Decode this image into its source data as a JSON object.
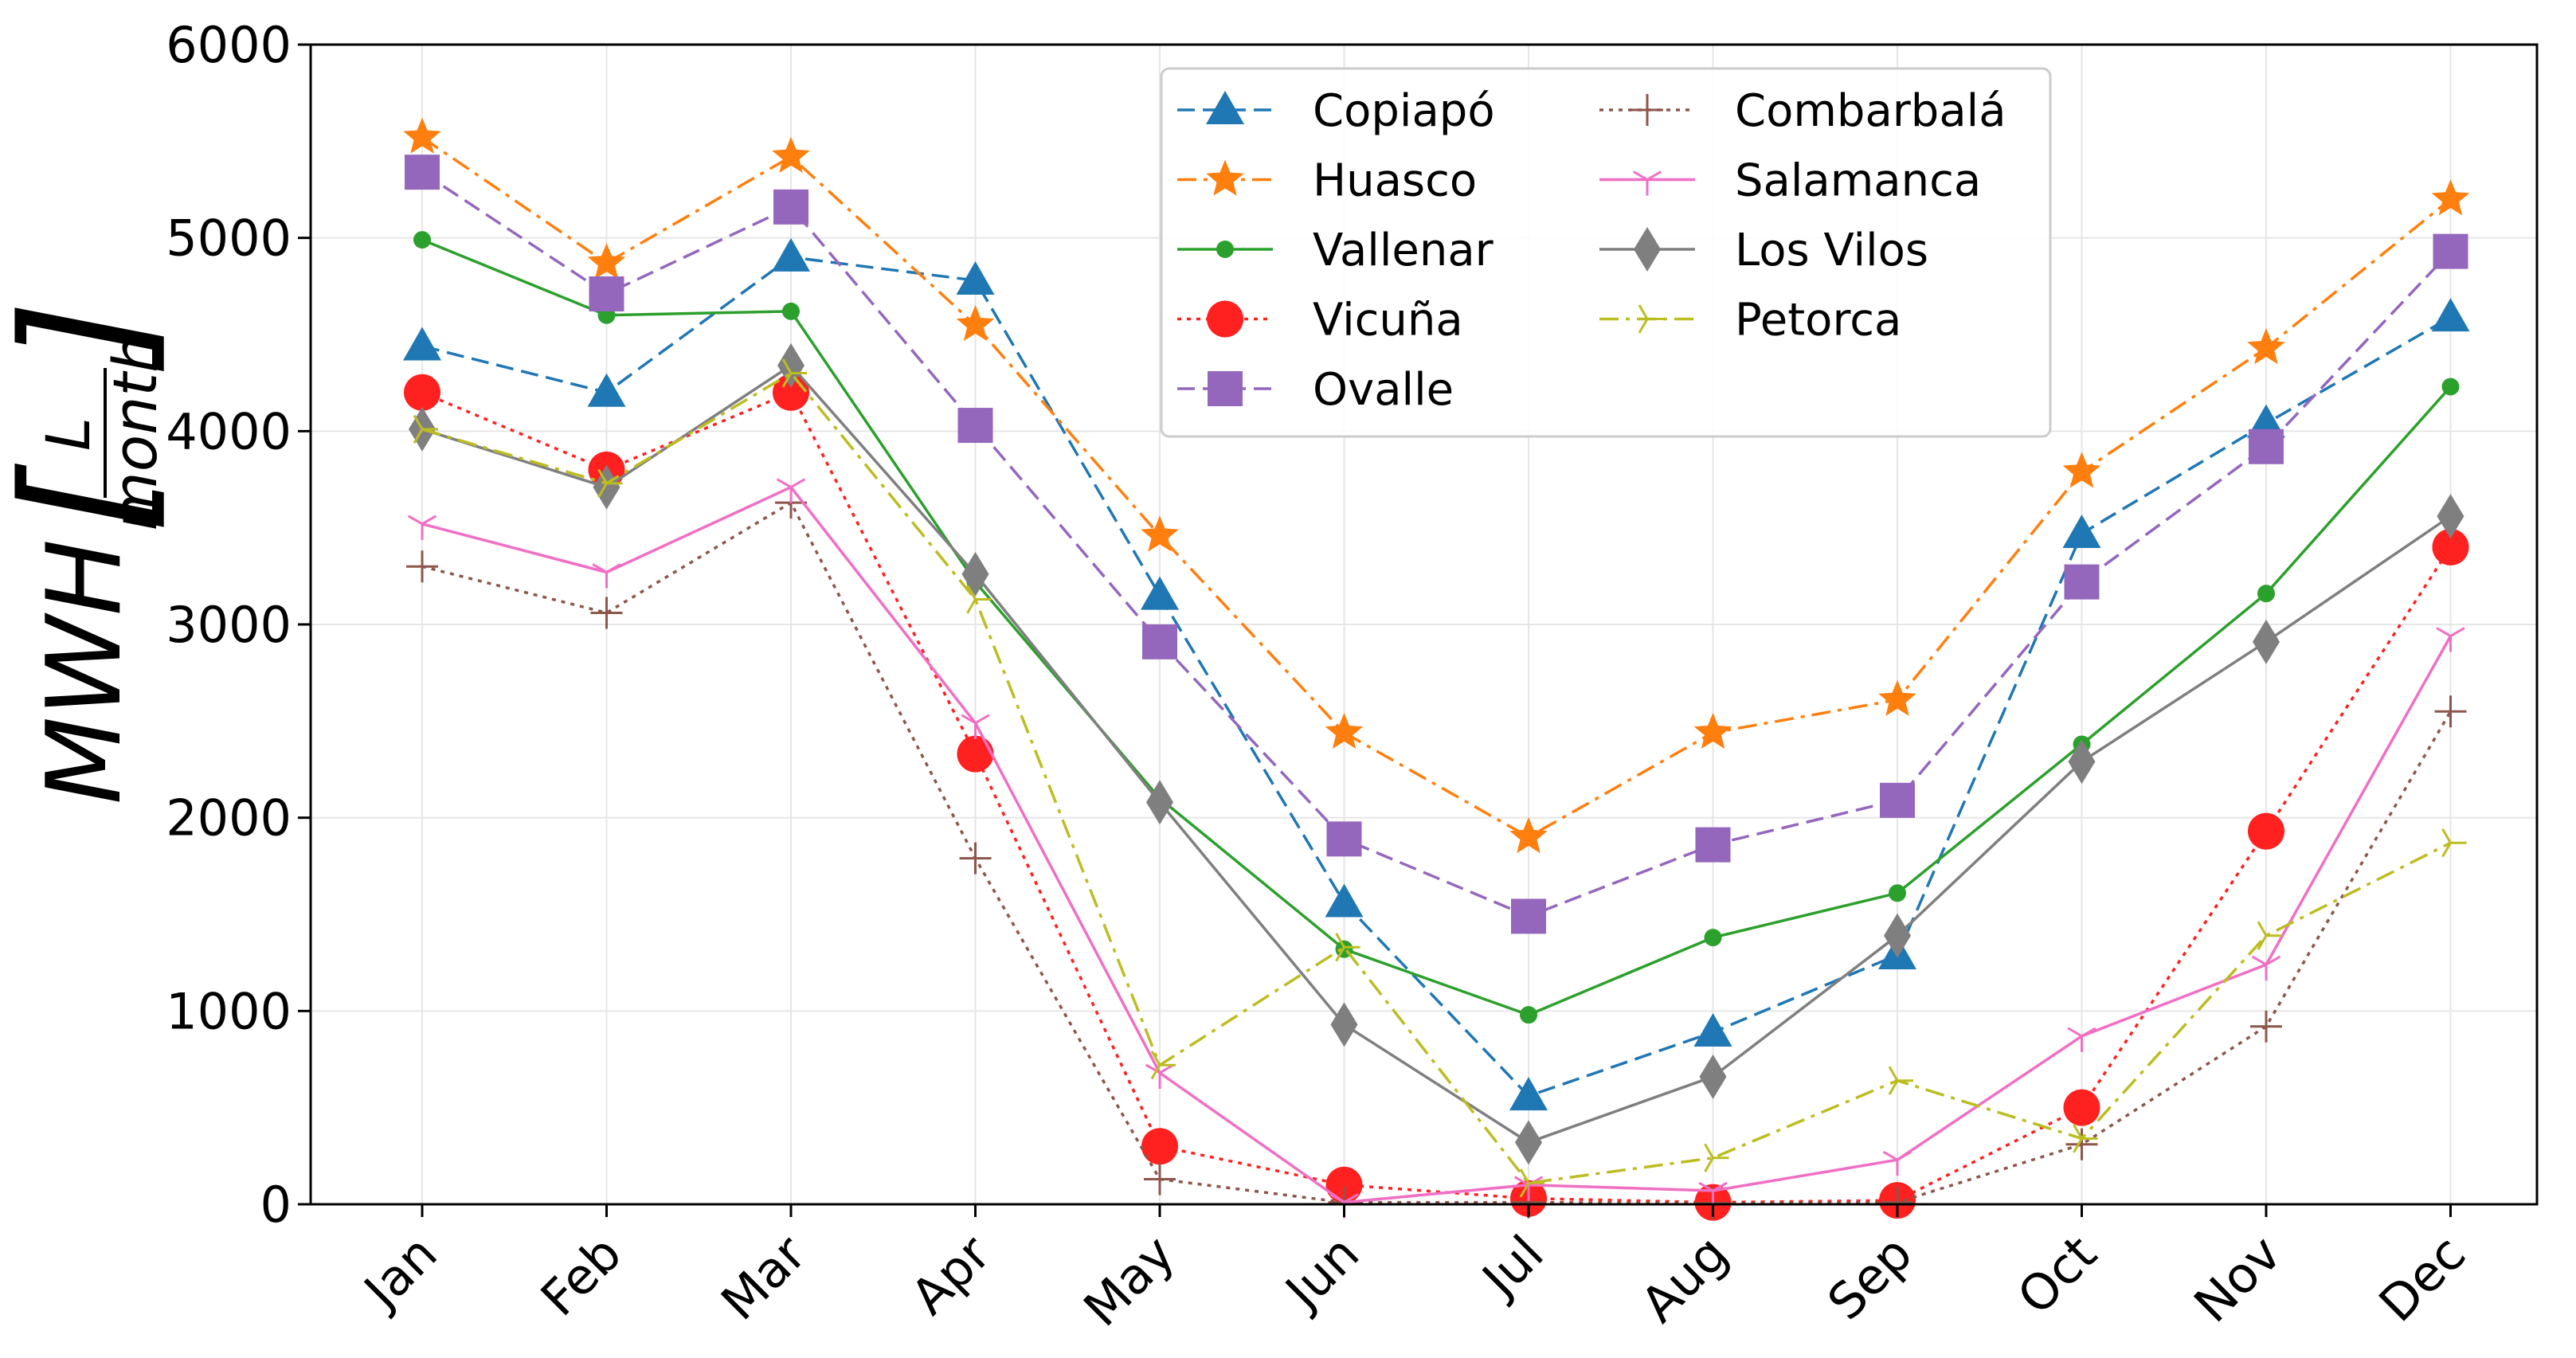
{
  "chart_data": {
    "type": "line",
    "ylabel": {
      "main": "MWH",
      "frac_num": "L",
      "frac_den": "month"
    },
    "xlabel": "",
    "categories": [
      "Jan",
      "Feb",
      "Mar",
      "Apr",
      "May",
      "Jun",
      "Jul",
      "Aug",
      "Sep",
      "Oct",
      "Nov",
      "Dec"
    ],
    "ylim": [
      0,
      6000
    ],
    "yticks": [
      0,
      1000,
      2000,
      3000,
      4000,
      5000,
      6000
    ],
    "grid": true,
    "legend": {
      "placement": "upper-center",
      "columns": 2
    },
    "series": [
      {
        "name": "Copiapó",
        "color": "#1f77b4",
        "dash": "dashed",
        "marker": "triangle",
        "values": [
          4440,
          4200,
          4900,
          4780,
          3150,
          1560,
          560,
          890,
          1290,
          3470,
          4040,
          4590
        ]
      },
      {
        "name": "Huasco",
        "color": "#ff7f0e",
        "dash": "dashdot",
        "marker": "star",
        "values": [
          5520,
          4870,
          5420,
          4550,
          3460,
          2440,
          1900,
          2440,
          2610,
          3790,
          4430,
          5200
        ]
      },
      {
        "name": "Vallenar",
        "color": "#2ca02c",
        "dash": "solid",
        "marker": "dot",
        "values": [
          4990,
          4600,
          4620,
          3220,
          2100,
          1320,
          980,
          1380,
          1610,
          2380,
          3160,
          4230
        ]
      },
      {
        "name": "Vicuña",
        "color": "#ff2020",
        "dash": "dotted",
        "marker": "circle",
        "values": [
          4200,
          3800,
          4200,
          2330,
          300,
          100,
          30,
          10,
          20,
          500,
          1930,
          3400
        ]
      },
      {
        "name": "Ovalle",
        "color": "#9467bd",
        "dash": "dashed",
        "marker": "square",
        "values": [
          5340,
          4710,
          5160,
          4030,
          2910,
          1890,
          1490,
          1860,
          2090,
          3220,
          3920,
          4930
        ]
      },
      {
        "name": "Combarbalá",
        "color": "#8c564b",
        "dash": "dotted",
        "marker": "plus",
        "values": [
          3300,
          3060,
          3630,
          1790,
          130,
          10,
          10,
          5,
          10,
          310,
          920,
          2550
        ]
      },
      {
        "name": "Salamanca",
        "color": "#f06fc4",
        "dash": "solid",
        "marker": "tri_down",
        "values": [
          3520,
          3270,
          3710,
          2490,
          680,
          10,
          100,
          70,
          230,
          870,
          1240,
          2940
        ]
      },
      {
        "name": "Los Vilos",
        "color": "#7f7f7f",
        "dash": "solid",
        "marker": "diamond",
        "values": [
          4010,
          3710,
          4340,
          3260,
          2080,
          930,
          320,
          660,
          1390,
          2290,
          2910,
          3560
        ]
      },
      {
        "name": "Petorca",
        "color": "#bcbd22",
        "dash": "dashdot",
        "marker": "tri_right",
        "values": [
          4010,
          3730,
          4300,
          3130,
          720,
          1330,
          110,
          240,
          640,
          340,
          1390,
          1870
        ]
      }
    ]
  }
}
